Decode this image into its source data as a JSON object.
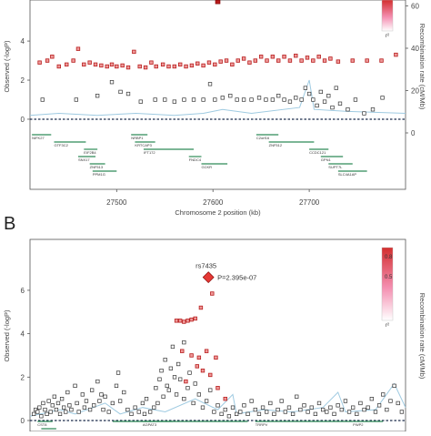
{
  "chart_data": [
    {
      "id": "A",
      "type": "scatter",
      "panel_label": "",
      "xlabel": "Chromosome 2 position (kb)",
      "ylabel": "Observed (-logP)",
      "ylabel_right": "Recombination rate (cM/Mb)",
      "xlim": [
        27410,
        27800
      ],
      "ylim": [
        -0.7,
        6.1
      ],
      "xticks": [
        "27500",
        "27600",
        "27700"
      ],
      "xtick_values": [
        27500,
        27600,
        27700
      ],
      "yticks": [
        "0",
        "2",
        "4"
      ],
      "ytick_values": [
        0,
        2,
        4
      ],
      "yticks_right": [
        "0",
        "20",
        "40",
        "60"
      ],
      "ytick_values_right": [
        0,
        20,
        40,
        60
      ],
      "legend_ticks": [],
      "legend_footer": "r²",
      "lead_point": {
        "x": 27605,
        "y": 6.0
      },
      "colors": {
        "high": "#b71c1c",
        "mid": "#ef9a9a",
        "low": "#ffffff",
        "recomb": "#9ecae1",
        "gene": "#2e8b57"
      },
      "points_red": [
        [
          27420,
          2.9
        ],
        [
          27428,
          3.0
        ],
        [
          27433,
          3.2
        ],
        [
          27440,
          2.7
        ],
        [
          27448,
          2.8
        ],
        [
          27455,
          3.0
        ],
        [
          27460,
          3.6
        ],
        [
          27466,
          2.8
        ],
        [
          27472,
          2.9
        ],
        [
          27478,
          2.8
        ],
        [
          27484,
          2.75
        ],
        [
          27490,
          2.7
        ],
        [
          27495,
          2.8
        ],
        [
          27500,
          2.7
        ],
        [
          27506,
          2.75
        ],
        [
          27512,
          2.65
        ],
        [
          27518,
          3.45
        ],
        [
          27524,
          2.7
        ],
        [
          27530,
          2.65
        ],
        [
          27536,
          2.9
        ],
        [
          27541,
          2.7
        ],
        [
          27548,
          2.8
        ],
        [
          27554,
          2.7
        ],
        [
          27560,
          2.7
        ],
        [
          27566,
          2.8
        ],
        [
          27572,
          2.7
        ],
        [
          27578,
          2.75
        ],
        [
          27584,
          2.85
        ],
        [
          27590,
          2.75
        ],
        [
          27596,
          2.9
        ],
        [
          27602,
          2.8
        ],
        [
          27608,
          2.95
        ],
        [
          27614,
          3.0
        ],
        [
          27620,
          2.8
        ],
        [
          27626,
          3.0
        ],
        [
          27632,
          3.1
        ],
        [
          27638,
          2.9
        ],
        [
          27644,
          3.0
        ],
        [
          27650,
          3.2
        ],
        [
          27656,
          3.0
        ],
        [
          27662,
          3.2
        ],
        [
          27668,
          3.0
        ],
        [
          27674,
          3.2
        ],
        [
          27680,
          3.0
        ],
        [
          27686,
          3.25
        ],
        [
          27692,
          3.0
        ],
        [
          27698,
          3.15
        ],
        [
          27704,
          3.0
        ],
        [
          27710,
          3.2
        ],
        [
          27716,
          3.0
        ],
        [
          27722,
          3.1
        ],
        [
          27730,
          2.95
        ],
        [
          27745,
          3.0
        ],
        [
          27760,
          3.0
        ],
        [
          27775,
          3.0
        ],
        [
          27790,
          3.3
        ]
      ],
      "points_open": [
        [
          27423,
          1.0
        ],
        [
          27458,
          1.0
        ],
        [
          27480,
          1.2
        ],
        [
          27495,
          1.9
        ],
        [
          27504,
          1.4
        ],
        [
          27512,
          1.3
        ],
        [
          27525,
          0.9
        ],
        [
          27540,
          1.0
        ],
        [
          27550,
          1.0
        ],
        [
          27560,
          0.9
        ],
        [
          27570,
          1.0
        ],
        [
          27580,
          1.0
        ],
        [
          27590,
          1.0
        ],
        [
          27597,
          1.8
        ],
        [
          27602,
          1.0
        ],
        [
          27610,
          1.1
        ],
        [
          27618,
          1.2
        ],
        [
          27625,
          1.0
        ],
        [
          27632,
          1.0
        ],
        [
          27640,
          1.0
        ],
        [
          27648,
          1.1
        ],
        [
          27655,
          1.0
        ],
        [
          27662,
          1.0
        ],
        [
          27668,
          1.2
        ],
        [
          27674,
          1.0
        ],
        [
          27680,
          0.9
        ],
        [
          27686,
          1.1
        ],
        [
          27692,
          1.0
        ],
        [
          27696,
          1.6
        ],
        [
          27700,
          1.3
        ],
        [
          27704,
          1.0
        ],
        [
          27708,
          0.7
        ],
        [
          27712,
          1.4
        ],
        [
          27716,
          0.9
        ],
        [
          27720,
          1.2
        ],
        [
          27724,
          0.6
        ],
        [
          27728,
          1.6
        ],
        [
          27732,
          0.8
        ],
        [
          27740,
          0.5
        ],
        [
          27748,
          1.0
        ],
        [
          27757,
          0.3
        ],
        [
          27766,
          0.5
        ],
        [
          27776,
          1.1
        ]
      ],
      "recomb": [
        [
          27410,
          0.2
        ],
        [
          27440,
          0.3
        ],
        [
          27480,
          0.2
        ],
        [
          27520,
          0.3
        ],
        [
          27560,
          0.2
        ],
        [
          27590,
          0.3
        ],
        [
          27610,
          0.5
        ],
        [
          27640,
          0.3
        ],
        [
          27690,
          0.6
        ],
        [
          27700,
          2.0
        ],
        [
          27705,
          0.5
        ],
        [
          27740,
          0.4
        ],
        [
          27800,
          0.3
        ]
      ],
      "genes": [
        {
          "name": "NIFK27",
          "start": 27412,
          "end": 27432,
          "row": 0
        },
        {
          "name": "GTF3C2",
          "start": 27435,
          "end": 27468,
          "row": 1
        },
        {
          "name": "EIF2B4",
          "start": 27466,
          "end": 27480,
          "row": 2
        },
        {
          "name": "SNX17",
          "start": 27460,
          "end": 27478,
          "row": 3
        },
        {
          "name": "ZNF513",
          "start": 27472,
          "end": 27488,
          "row": 4
        },
        {
          "name": "PPM1G",
          "start": 27475,
          "end": 27500,
          "row": 5
        },
        {
          "name": "NRBP1",
          "start": 27515,
          "end": 27532,
          "row": 0
        },
        {
          "name": "KRTCAP3",
          "start": 27519,
          "end": 27540,
          "row": 1
        },
        {
          "name": "IFT172",
          "start": 27528,
          "end": 27580,
          "row": 2
        },
        {
          "name": "FNDC4",
          "start": 27575,
          "end": 27588,
          "row": 3
        },
        {
          "name": "GCKR",
          "start": 27588,
          "end": 27615,
          "row": 4
        },
        {
          "name": "C2orf16",
          "start": 27645,
          "end": 27668,
          "row": 0
        },
        {
          "name": "ZNF512",
          "start": 27658,
          "end": 27705,
          "row": 1
        },
        {
          "name": "CCDC121",
          "start": 27700,
          "end": 27720,
          "row": 2
        },
        {
          "name": "GPN1",
          "start": 27712,
          "end": 27735,
          "row": 3
        },
        {
          "name": "SUPT7L",
          "start": 27720,
          "end": 27745,
          "row": 4
        },
        {
          "name": "SLC4A1AP",
          "start": 27730,
          "end": 27760,
          "row": 5
        }
      ]
    },
    {
      "id": "B",
      "type": "scatter",
      "panel_label": "B",
      "xlabel": "",
      "ylabel": "Observed (-logP)",
      "ylabel_right": "Recombination rate (cM/Mb)",
      "xlim": [
        0,
        100
      ],
      "ylim": [
        0,
        7.8
      ],
      "xticks": [],
      "xtick_values": [],
      "yticks": [
        "0",
        "2",
        "4",
        "6"
      ],
      "ytick_values": [
        0,
        2,
        4,
        6
      ],
      "yticks_right": [],
      "ytick_values_right": [],
      "legend_ticks": [
        "0.8",
        "0.5"
      ],
      "legend_footer": "r²",
      "lead_snp": {
        "label": "rs7435",
        "pvalue": "P=2.395e-07",
        "x": 47.5,
        "y": 6.6
      },
      "colors": {
        "high": "#b71c1c",
        "mid": "#ef9a9a",
        "low": "#ffffff",
        "recomb": "#9ecae1",
        "gene": "#2e8b57"
      },
      "points_red": [
        [
          39,
          4.6
        ],
        [
          40,
          4.6
        ],
        [
          41,
          4.55
        ],
        [
          42,
          4.6
        ],
        [
          43,
          4.65
        ],
        [
          44,
          4.7
        ],
        [
          45.5,
          5.2
        ],
        [
          48.5,
          5.85
        ],
        [
          40.5,
          3.2
        ],
        [
          43,
          3.0
        ],
        [
          45,
          2.9
        ],
        [
          47,
          3.2
        ],
        [
          49.5,
          2.9
        ],
        [
          46,
          2.3
        ],
        [
          48,
          2.1
        ],
        [
          50,
          1.5
        ],
        [
          41.5,
          1.8
        ],
        [
          44.5,
          2.5
        ],
        [
          52,
          1.0
        ]
      ],
      "points_open": [
        [
          1,
          0.3
        ],
        [
          1.5,
          0.5
        ],
        [
          2,
          0.4
        ],
        [
          2.5,
          0.6
        ],
        [
          3,
          0.2
        ],
        [
          3.5,
          0.8
        ],
        [
          4,
          0.5
        ],
        [
          4.5,
          0.3
        ],
        [
          5,
          0.9
        ],
        [
          5.5,
          0.4
        ],
        [
          6,
          0.7
        ],
        [
          6.5,
          1.1
        ],
        [
          7,
          0.5
        ],
        [
          7.5,
          0.8
        ],
        [
          8,
          0.3
        ],
        [
          8.5,
          1.0
        ],
        [
          9,
          0.6
        ],
        [
          9.5,
          0.4
        ],
        [
          10,
          1.3
        ],
        [
          10.5,
          0.7
        ],
        [
          11,
          0.5
        ],
        [
          12,
          1.6
        ],
        [
          12.5,
          0.8
        ],
        [
          13,
          0.4
        ],
        [
          14,
          1.2
        ],
        [
          14.5,
          0.6
        ],
        [
          15,
          0.9
        ],
        [
          16,
          0.5
        ],
        [
          16.5,
          1.4
        ],
        [
          17,
          0.7
        ],
        [
          18,
          1.8
        ],
        [
          18.5,
          0.9
        ],
        [
          19,
          1.2
        ],
        [
          19.5,
          0.5
        ],
        [
          20,
          1.1
        ],
        [
          21,
          0.4
        ],
        [
          22,
          0.8
        ],
        [
          23,
          1.6
        ],
        [
          23.5,
          2.2
        ],
        [
          24,
          0.9
        ],
        [
          25,
          1.3
        ],
        [
          26,
          0.5
        ],
        [
          27,
          0.3
        ],
        [
          28,
          0.6
        ],
        [
          29,
          0.4
        ],
        [
          30,
          0.8
        ],
        [
          30.5,
          0.3
        ],
        [
          31,
          1.0
        ],
        [
          32,
          0.4
        ],
        [
          33,
          0.6
        ],
        [
          33.5,
          1.5
        ],
        [
          34,
          0.8
        ],
        [
          34.5,
          1.9
        ],
        [
          35,
          2.3
        ],
        [
          35.5,
          1.1
        ],
        [
          36,
          2.8
        ],
        [
          36.5,
          1.6
        ],
        [
          37,
          1.4
        ],
        [
          37.5,
          2.4
        ],
        [
          38,
          3.4
        ],
        [
          38.5,
          2.0
        ],
        [
          39,
          1.2
        ],
        [
          39.5,
          2.6
        ],
        [
          40,
          1.9
        ],
        [
          41,
          3.6
        ],
        [
          41,
          1.0
        ],
        [
          42,
          1.5
        ],
        [
          42.5,
          2.2
        ],
        [
          43.5,
          0.8
        ],
        [
          44,
          1.7
        ],
        [
          45,
          1.2
        ],
        [
          46,
          0.6
        ],
        [
          47,
          0.9
        ],
        [
          48,
          1.4
        ],
        [
          49,
          0.4
        ],
        [
          50,
          0.7
        ],
        [
          51,
          0.3
        ],
        [
          52,
          0.5
        ],
        [
          53,
          0.2
        ],
        [
          54,
          0.6
        ],
        [
          55,
          0.3
        ],
        [
          56,
          0.4
        ],
        [
          57,
          0.7
        ],
        [
          58,
          0.3
        ],
        [
          59,
          0.9
        ],
        [
          60,
          0.5
        ],
        [
          61,
          0.3
        ],
        [
          62,
          0.6
        ],
        [
          63,
          0.4
        ],
        [
          64,
          0.8
        ],
        [
          65,
          0.3
        ],
        [
          66,
          0.5
        ],
        [
          67,
          0.9
        ],
        [
          68,
          0.4
        ],
        [
          69,
          0.6
        ],
        [
          70,
          0.3
        ],
        [
          71,
          1.1
        ],
        [
          72,
          0.5
        ],
        [
          73,
          0.7
        ],
        [
          74,
          0.4
        ],
        [
          75,
          0.6
        ],
        [
          76,
          0.3
        ],
        [
          77,
          0.8
        ],
        [
          78,
          0.5
        ],
        [
          79,
          0.4
        ],
        [
          80,
          0.6
        ],
        [
          81,
          0.3
        ],
        [
          82,
          0.7
        ],
        [
          83,
          0.5
        ],
        [
          84,
          0.9
        ],
        [
          85,
          0.4
        ],
        [
          86,
          0.6
        ],
        [
          87,
          0.3
        ],
        [
          88,
          0.8
        ],
        [
          89,
          0.5
        ],
        [
          90,
          0.6
        ],
        [
          91,
          1.0
        ],
        [
          92,
          0.4
        ],
        [
          93,
          0.7
        ],
        [
          94,
          1.2
        ],
        [
          95,
          0.5
        ],
        [
          96,
          0.9
        ],
        [
          97,
          1.6
        ],
        [
          98,
          0.8
        ],
        [
          99,
          0.4
        ]
      ],
      "recomb": [
        [
          0,
          0.2
        ],
        [
          8,
          0.5
        ],
        [
          12,
          0.3
        ],
        [
          20,
          0.8
        ],
        [
          24,
          0.3
        ],
        [
          30,
          0.6
        ],
        [
          36,
          0.4
        ],
        [
          44,
          1.0
        ],
        [
          50,
          0.5
        ],
        [
          54,
          1.2
        ],
        [
          55,
          0.3
        ],
        [
          62,
          0.5
        ],
        [
          70,
          0.4
        ],
        [
          78,
          0.6
        ],
        [
          82,
          1.3
        ],
        [
          84,
          0.4
        ],
        [
          92,
          0.5
        ],
        [
          97,
          1.7
        ],
        [
          100,
          0.6
        ]
      ],
      "genes": [
        {
          "name": "CST8",
          "start": 2,
          "end": 6,
          "row": 0
        },
        {
          "name": "",
          "start": 3,
          "end": 7,
          "row": 1
        },
        {
          "name": "",
          "start": 22,
          "end": 38,
          "row": 0
        },
        {
          "name": "AGPAT3",
          "start": 30,
          "end": 58,
          "row": 0
        },
        {
          "name": "TRRPV",
          "start": 60,
          "end": 86,
          "row": 0
        },
        {
          "name": "PWP2",
          "start": 86,
          "end": 94,
          "row": 0
        }
      ]
    }
  ]
}
